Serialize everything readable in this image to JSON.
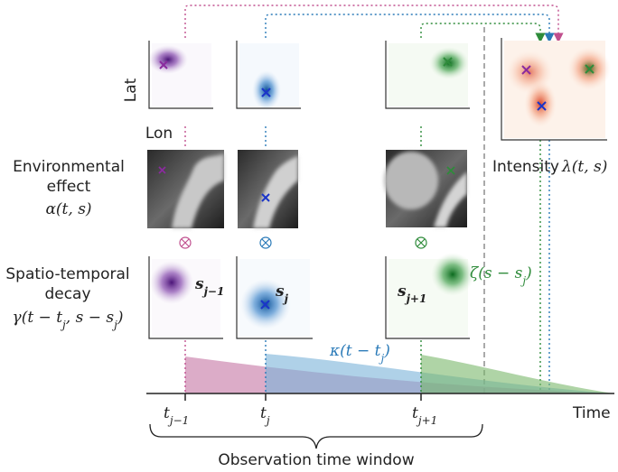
{
  "plot_axes": {
    "y_label": "Lat",
    "x_label": "Lon"
  },
  "environmental_effect": {
    "label": [
      "Environmental",
      "effect"
    ],
    "formula": "α(t, s)"
  },
  "spatio_temporal_decay": {
    "label": [
      "Spatio-temporal",
      "decay"
    ],
    "formula": [
      "γ(t − t",
      "j",
      ", s − s",
      "j",
      ")"
    ]
  },
  "event_labels": [
    [
      "s",
      "j−1"
    ],
    [
      "s",
      "j"
    ],
    [
      "s",
      "j+1"
    ]
  ],
  "spatial_kernel": [
    "ζ(s − s",
    "j",
    ")"
  ],
  "temporal_kernel": [
    "κ(t − t",
    "j",
    ")"
  ],
  "intensity": {
    "label": "Intensity",
    "formula": "λ(t, s)"
  },
  "time_axis": {
    "ticks": [
      [
        "t",
        "j−1"
      ],
      [
        "t",
        "j"
      ],
      [
        "t",
        "j+1"
      ]
    ],
    "label": "Time"
  },
  "observation_window": "Observation time window"
}
